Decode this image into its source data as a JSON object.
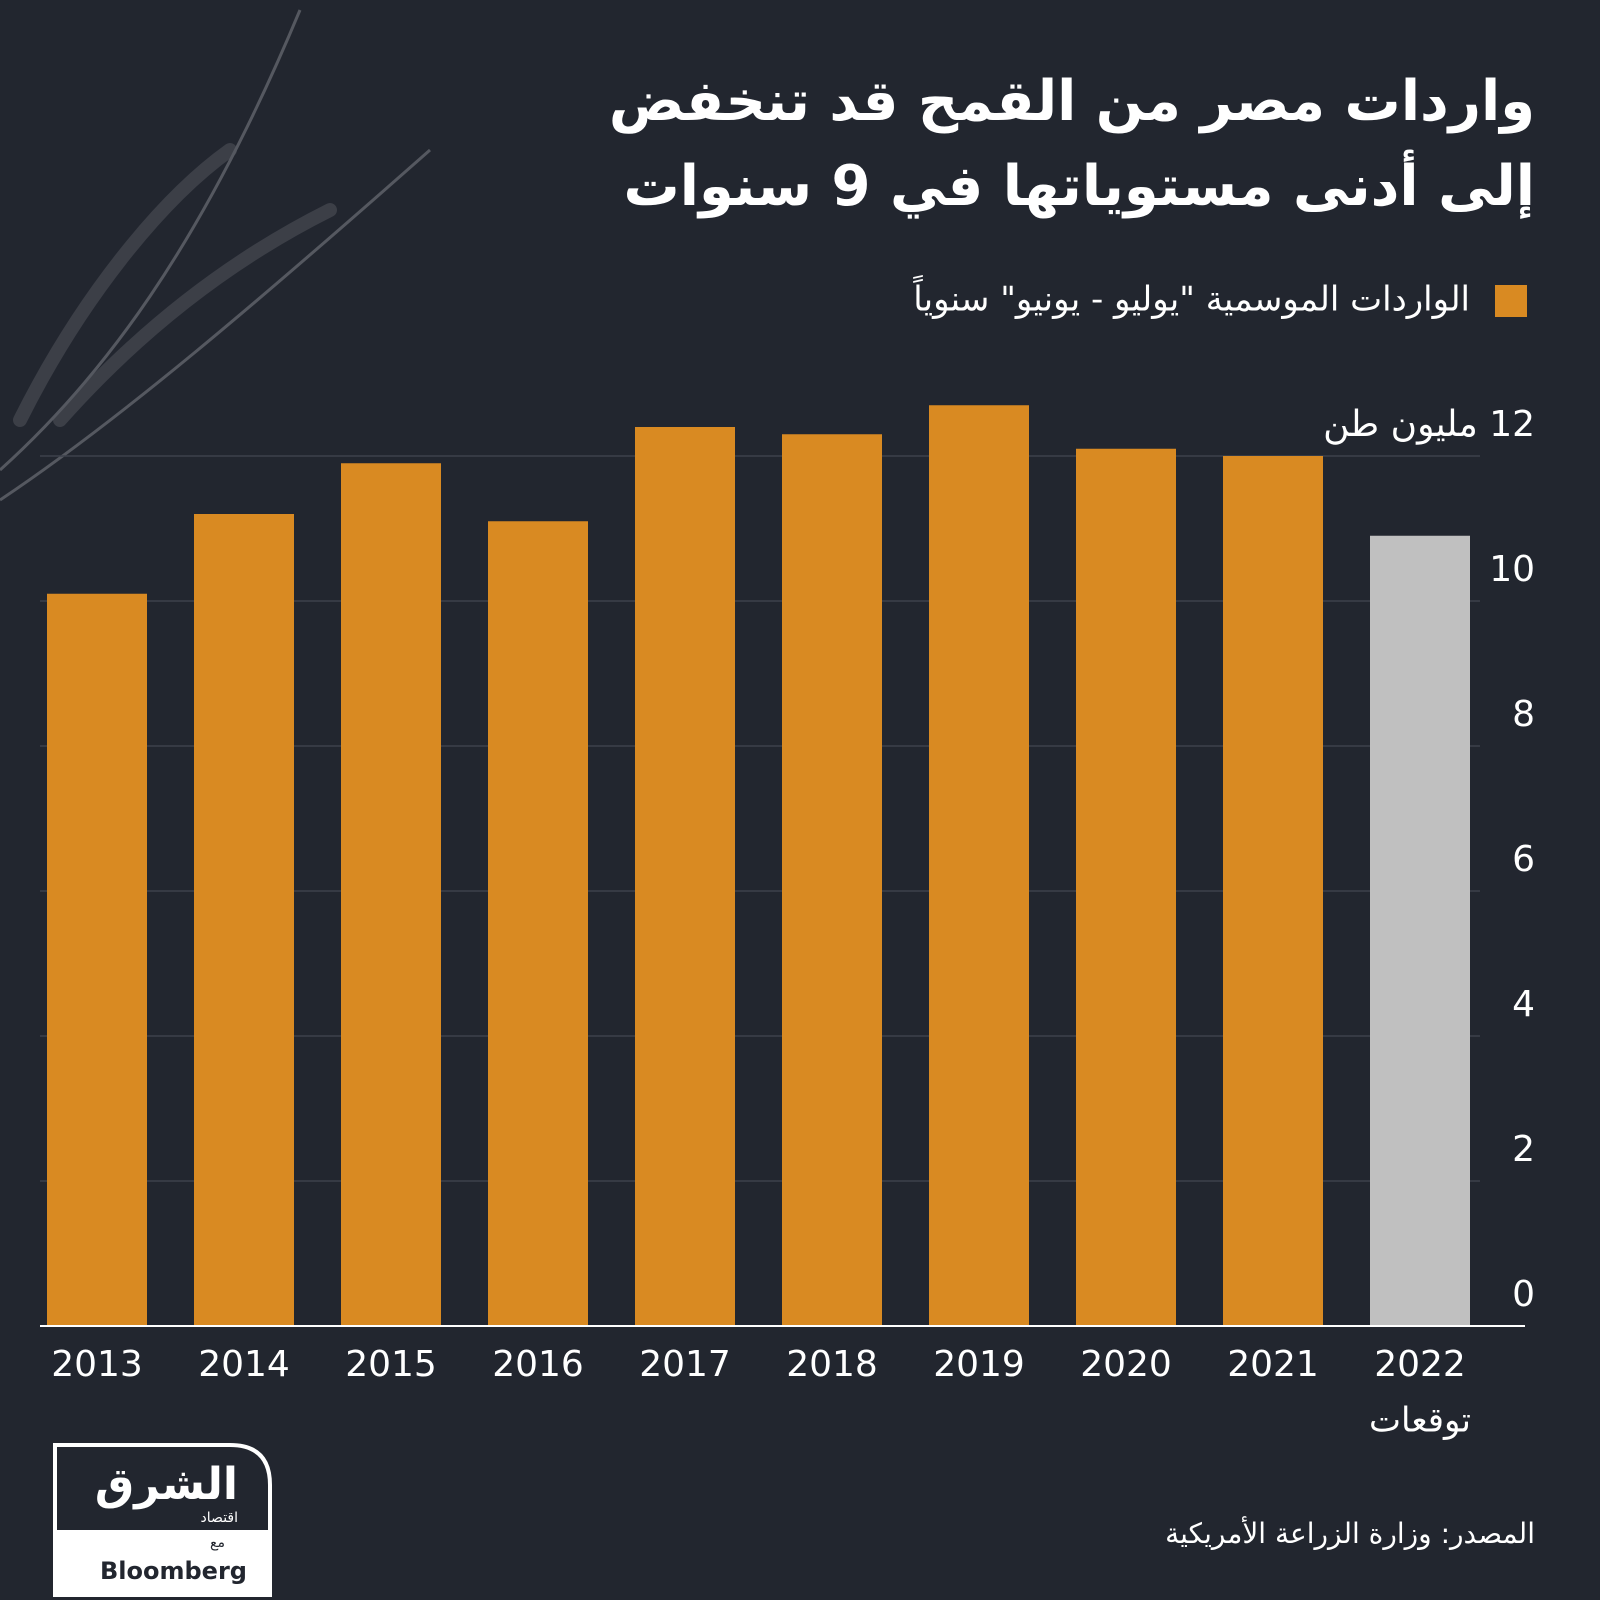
{
  "chart_data": {
    "type": "bar",
    "title": "واردات مصر من القمح قد تنخفض",
    "subtitle": "إلى أدنى مستوياتها في 9 سنوات",
    "legend": "الواردات الموسمية \"يوليو - يونيو\" سنوياً",
    "legend_color": "#d98a22",
    "categories": [
      "2013",
      "2014",
      "2015",
      "2016",
      "2017",
      "2018",
      "2019",
      "2020",
      "2021",
      "2022"
    ],
    "values": [
      10.1,
      11.2,
      11.9,
      11.1,
      12.4,
      12.3,
      12.7,
      12.1,
      12.0,
      10.9
    ],
    "colors": [
      "#d98a22",
      "#d98a22",
      "#d98a22",
      "#d98a22",
      "#d98a22",
      "#d98a22",
      "#d98a22",
      "#d98a22",
      "#d98a22",
      "#c0c0c0"
    ],
    "annotations": [
      {
        "category": "2022",
        "text": "توقعات"
      }
    ],
    "ylim": [
      0,
      13
    ],
    "yticks": [
      0,
      2,
      4,
      6,
      8,
      10,
      {
        "value": 12,
        "label": "12 مليون طن"
      }
    ],
    "grid": true,
    "source": "المصدر: وزارة الزراعة الأمريكية"
  },
  "logo": {
    "name": "الشرق",
    "tagline": "اقتصاد",
    "with": "مع",
    "partner": "Bloomberg"
  }
}
